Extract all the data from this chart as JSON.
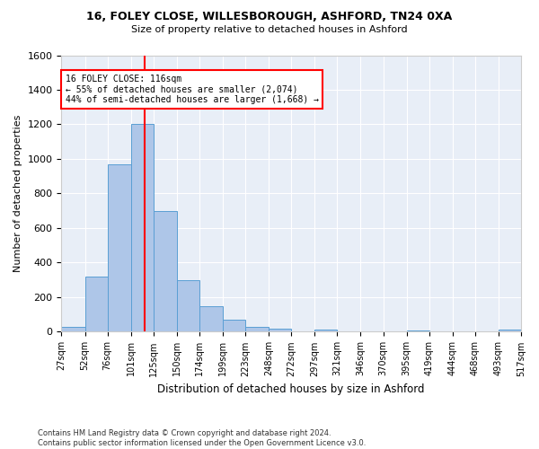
{
  "title1": "16, FOLEY CLOSE, WILLESBOROUGH, ASHFORD, TN24 0XA",
  "title2": "Size of property relative to detached houses in Ashford",
  "xlabel": "Distribution of detached houses by size in Ashford",
  "ylabel": "Number of detached properties",
  "bin_edges": [
    27,
    52,
    76,
    101,
    125,
    150,
    174,
    199,
    223,
    248,
    272,
    297,
    321,
    346,
    370,
    395,
    419,
    444,
    468,
    493,
    517
  ],
  "bar_heights": [
    30,
    320,
    970,
    1200,
    700,
    300,
    150,
    70,
    30,
    20,
    0,
    15,
    0,
    0,
    0,
    10,
    0,
    0,
    0,
    15
  ],
  "bar_color": "#aec6e8",
  "bar_edgecolor": "#5a9fd4",
  "vline_x": 116,
  "vline_color": "red",
  "annotation_text": "16 FOLEY CLOSE: 116sqm\n← 55% of detached houses are smaller (2,074)\n44% of semi-detached houses are larger (1,668) →",
  "annotation_box_color": "white",
  "annotation_box_edgecolor": "red",
  "ylim": [
    0,
    1600
  ],
  "yticks": [
    0,
    200,
    400,
    600,
    800,
    1000,
    1200,
    1400,
    1600
  ],
  "tick_labels": [
    "27sqm",
    "52sqm",
    "76sqm",
    "101sqm",
    "125sqm",
    "150sqm",
    "174sqm",
    "199sqm",
    "223sqm",
    "248sqm",
    "272sqm",
    "297sqm",
    "321sqm",
    "346sqm",
    "370sqm",
    "395sqm",
    "419sqm",
    "444sqm",
    "468sqm",
    "493sqm",
    "517sqm"
  ],
  "footer_text": "Contains HM Land Registry data © Crown copyright and database right 2024.\nContains public sector information licensed under the Open Government Licence v3.0.",
  "fig_bg_color": "#ffffff",
  "axes_bg_color": "#e8eef7",
  "grid_color": "#ffffff"
}
